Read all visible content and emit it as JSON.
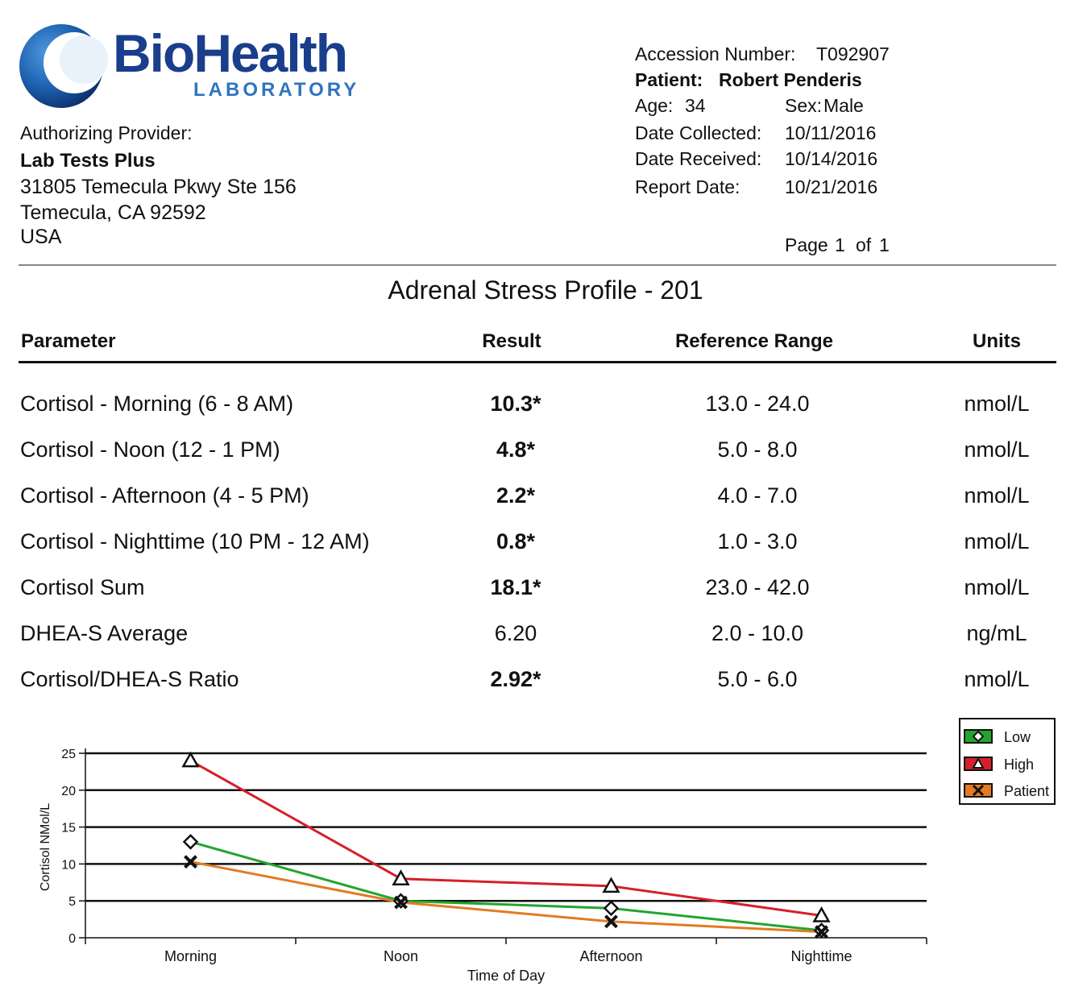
{
  "logo": {
    "brand": "BioHealth",
    "sub": "LABORATORY"
  },
  "provider": {
    "label": "Authorizing Provider:",
    "name": "Lab Tests Plus",
    "address1": "31805 Temecula Pkwy Ste 156",
    "address2": "Temecula, CA 92592",
    "country": "USA"
  },
  "meta": {
    "accession_label": "Accession Number:",
    "accession_value": "T092907",
    "patient_label": "Patient:",
    "patient_value": "Robert Penderis",
    "age_label": "Age:",
    "age_value": "34",
    "sex_label": "Sex:",
    "sex_value": "Male",
    "collected_label": "Date Collected:",
    "collected_value": "10/11/2016",
    "received_label": "Date Received:",
    "received_value": "10/14/2016",
    "report_label": "Report Date:",
    "report_value": "10/21/2016",
    "page_label": "Page",
    "page_num": "1",
    "page_of": "of",
    "page_total": "1"
  },
  "report_title": "Adrenal Stress Profile - 201",
  "table": {
    "headers": {
      "parameter": "Parameter",
      "result": "Result",
      "range": "Reference Range",
      "units": "Units"
    },
    "rows": [
      {
        "parameter": "Cortisol - Morning (6 - 8 AM)",
        "result": "10.3*",
        "range": "13.0 - 24.0",
        "units": "nmol/L"
      },
      {
        "parameter": "Cortisol - Noon (12 - 1 PM)",
        "result": "4.8*",
        "range": "5.0 - 8.0",
        "units": "nmol/L"
      },
      {
        "parameter": "Cortisol - Afternoon (4 - 5 PM)",
        "result": "2.2*",
        "range": "4.0 - 7.0",
        "units": "nmol/L"
      },
      {
        "parameter": "Cortisol - Nighttime (10 PM - 12 AM)",
        "result": "0.8*",
        "range": "1.0 - 3.0",
        "units": "nmol/L"
      },
      {
        "parameter": "Cortisol Sum",
        "result": "18.1*",
        "range": "23.0 - 42.0",
        "units": "nmol/L"
      },
      {
        "parameter": "DHEA-S Average",
        "result": "6.20",
        "range": "2.0 - 10.0",
        "units": "ng/mL"
      },
      {
        "parameter": "Cortisol/DHEA-S Ratio",
        "result": "2.92*",
        "range": "5.0 - 6.0",
        "units": "nmol/L"
      }
    ]
  },
  "chart_data": {
    "type": "line",
    "categories": [
      "Morning",
      "Noon",
      "Afternoon",
      "Nighttime"
    ],
    "series": [
      {
        "name": "Low",
        "values": [
          13.0,
          5.0,
          4.0,
          1.0
        ],
        "color": "#22a52e",
        "marker": "diamond"
      },
      {
        "name": "High",
        "values": [
          24.0,
          8.0,
          7.0,
          3.0
        ],
        "color": "#d61f2a",
        "marker": "triangle"
      },
      {
        "name": "Patient",
        "values": [
          10.3,
          4.8,
          2.2,
          0.8
        ],
        "color": "#e27b22",
        "marker": "x"
      }
    ],
    "xlabel": "Time of Day",
    "ylabel": "Cortisol NMol/L",
    "ylim": [
      0,
      25
    ],
    "yticks": [
      0,
      5,
      10,
      15,
      20,
      25
    ],
    "grid": true,
    "legend_position": "top-right"
  }
}
